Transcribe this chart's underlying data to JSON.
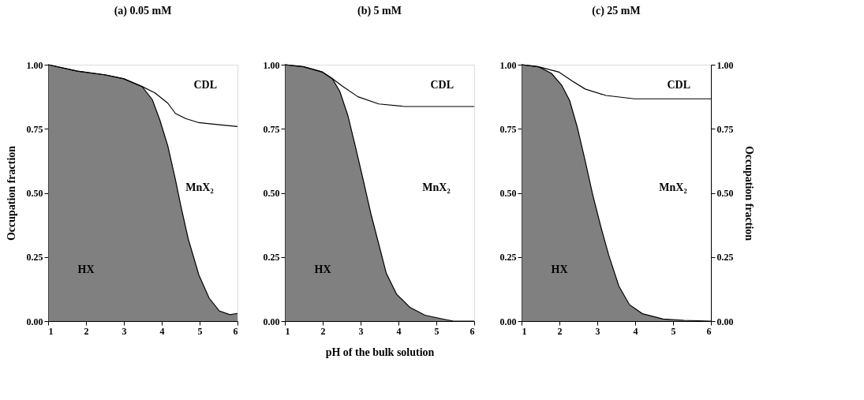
{
  "chart_data": [
    {
      "type": "area",
      "title": "(a) 0.05 mM",
      "ylabel": "Occupation fraction",
      "xlim": [
        1,
        6
      ],
      "xticks": [
        1,
        2,
        3,
        4,
        5,
        6
      ],
      "ylim": [
        0,
        1
      ],
      "yticks": [
        {
          "value": 0,
          "label": "0.00"
        },
        {
          "value": 0.25,
          "label": "0.25"
        },
        {
          "value": 0.5,
          "label": "0.50"
        },
        {
          "value": 0.75,
          "label": "0.75"
        },
        {
          "value": 1,
          "label": "1.00"
        }
      ],
      "grid": false,
      "series": [
        {
          "name": "HX",
          "color": "#555555",
          "x": [
            1,
            1.77,
            2.52,
            3.0,
            3.48,
            3.75,
            3.95,
            4.16,
            4.36,
            4.5,
            4.7,
            4.98,
            5.25,
            5.52,
            5.8,
            6
          ],
          "values": [
            1.0,
            0.975,
            0.96,
            0.945,
            0.915,
            0.864,
            0.784,
            0.683,
            0.553,
            0.452,
            0.32,
            0.18,
            0.09,
            0.04,
            0.025,
            0.03
          ]
        },
        {
          "name": "CDL",
          "type": "line",
          "color": "#000000",
          "x": [
            1,
            1.77,
            2.52,
            3.0,
            3.48,
            3.82,
            4.16,
            4.36,
            4.63,
            4.98,
            5.52,
            6
          ],
          "values": [
            1.0,
            0.975,
            0.96,
            0.945,
            0.915,
            0.89,
            0.85,
            0.81,
            0.79,
            0.774,
            0.766,
            0.759
          ]
        }
      ],
      "annotations": [
        "MnX₂"
      ]
    },
    {
      "type": "area",
      "title": "(b) 5 mM",
      "xlabel": "pH of the bulk solution",
      "xlim": [
        1,
        6
      ],
      "xticks": [
        1,
        2,
        3,
        4,
        5,
        6
      ],
      "ylim": [
        0,
        1
      ],
      "yticks": [
        {
          "value": 0,
          "label": "0.00"
        },
        {
          "value": 0.25,
          "label": "0.25"
        },
        {
          "value": 0.5,
          "label": "0.50"
        },
        {
          "value": 0.75,
          "label": "0.75"
        },
        {
          "value": 1,
          "label": "1.00"
        }
      ],
      "grid": false,
      "series": [
        {
          "name": "HX",
          "color": "#555555",
          "x": [
            1,
            1.5,
            1.98,
            2.25,
            2.45,
            2.66,
            2.86,
            3.07,
            3.27,
            3.48,
            3.68,
            3.95,
            4.3,
            4.7,
            5.11,
            5.45,
            6
          ],
          "values": [
            1.0,
            0.992,
            0.972,
            0.946,
            0.896,
            0.804,
            0.683,
            0.55,
            0.42,
            0.3,
            0.186,
            0.105,
            0.054,
            0.023,
            0.01,
            0.0,
            0.0
          ]
        },
        {
          "name": "CDL",
          "type": "line",
          "color": "#000000",
          "x": [
            1,
            1.5,
            1.98,
            2.25,
            2.52,
            2.93,
            3.48,
            4.16,
            6
          ],
          "values": [
            1.0,
            0.992,
            0.972,
            0.946,
            0.916,
            0.875,
            0.847,
            0.837,
            0.837
          ]
        }
      ],
      "annotations": [
        "MnX₂"
      ]
    },
    {
      "type": "area",
      "title": "(c) 25 mM",
      "y2label": "Occupation fraction",
      "xlim": [
        1,
        6
      ],
      "xticks": [
        1,
        2,
        3,
        4,
        5,
        6
      ],
      "ylim": [
        0,
        1
      ],
      "yticks": [
        {
          "value": 0,
          "label": "0.00"
        },
        {
          "value": 0.25,
          "label": "0.25"
        },
        {
          "value": 0.5,
          "label": "0.50"
        },
        {
          "value": 0.75,
          "label": "0.75"
        },
        {
          "value": 1,
          "label": "1.00"
        }
      ],
      "y2lim": [
        0,
        1
      ],
      "y2ticks": [
        {
          "value": 0,
          "label": "0.00"
        },
        {
          "value": 0.25,
          "label": "0.25"
        },
        {
          "value": 0.5,
          "label": "0.50"
        },
        {
          "value": 0.75,
          "label": "0.75"
        },
        {
          "value": 1,
          "label": "1.00"
        }
      ],
      "grid": false,
      "series": [
        {
          "name": "HX",
          "color": "#555555",
          "x": [
            1,
            1.45,
            1.79,
            2.06,
            2.27,
            2.47,
            2.68,
            2.88,
            3.09,
            3.3,
            3.57,
            3.85,
            4.19,
            4.74,
            5.29,
            6
          ],
          "values": [
            1.0,
            0.992,
            0.966,
            0.92,
            0.86,
            0.757,
            0.625,
            0.492,
            0.37,
            0.258,
            0.136,
            0.064,
            0.029,
            0.008,
            0.003,
            0.0
          ]
        },
        {
          "name": "CDL",
          "type": "line",
          "axis": "y2",
          "color": "#000000",
          "x": [
            1,
            1.45,
            1.99,
            2.34,
            2.68,
            3.23,
            3.98,
            6
          ],
          "values": [
            1.0,
            0.992,
            0.971,
            0.936,
            0.905,
            0.88,
            0.867,
            0.867
          ]
        }
      ],
      "annotations": [
        "MnX₂"
      ]
    }
  ]
}
